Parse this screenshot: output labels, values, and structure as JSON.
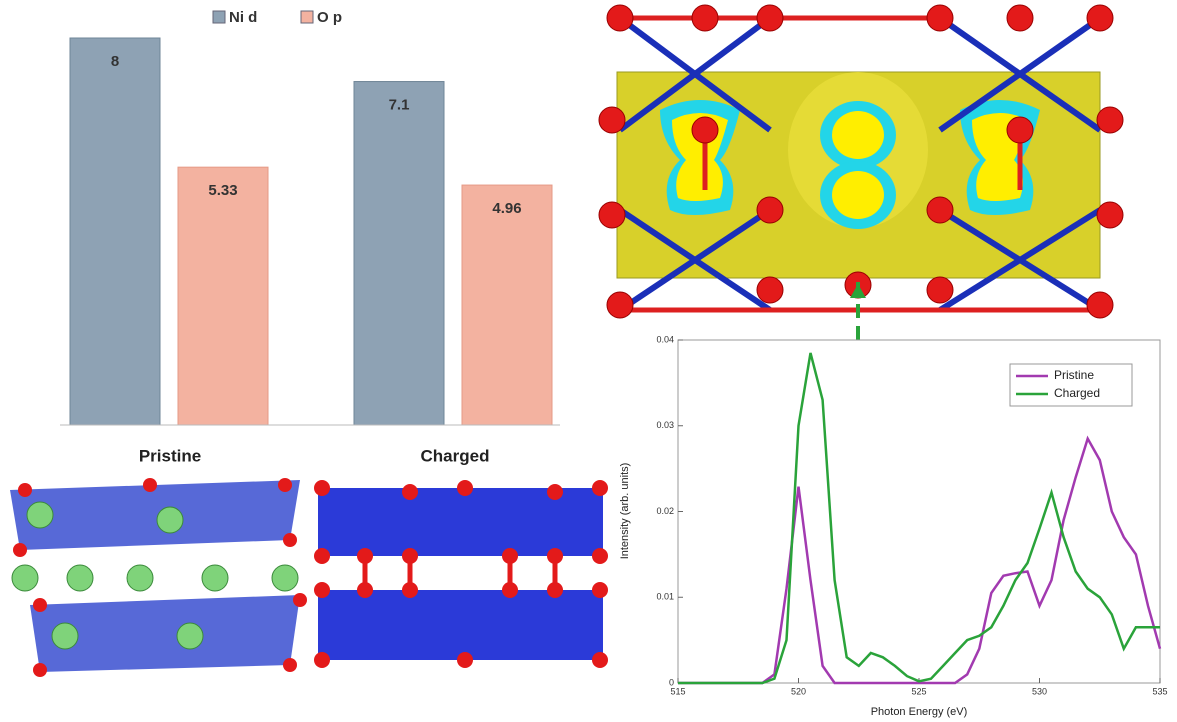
{
  "chart_data": [
    {
      "type": "bar",
      "categories": [
        null,
        null
      ],
      "series": [
        {
          "name": "Ni d",
          "color": "#8ea2b4",
          "values": [
            8,
            7.1
          ]
        },
        {
          "name": "O p",
          "color": "#f3b2a0",
          "values": [
            5.33,
            4.96
          ]
        }
      ]
    },
    {
      "type": "line",
      "xlabel": "Photon Energy (eV)",
      "ylabel": "Intensity (arb. units)",
      "x": [
        515,
        515.5,
        516,
        516.5,
        517,
        517.5,
        518,
        518.5,
        519,
        519.5,
        520,
        520.5,
        521,
        521.5,
        522,
        522.5,
        523,
        523.5,
        524,
        524.5,
        525,
        525.5,
        526,
        526.5,
        527,
        527.5,
        528,
        528.5,
        529,
        529.5,
        530,
        530.5,
        531,
        531.5,
        532,
        532.5,
        533,
        533.5,
        534,
        534.5,
        535
      ],
      "xlim": [
        515,
        535
      ],
      "xticks": [
        515,
        520,
        525,
        530,
        535
      ],
      "ylim": [
        0,
        0.04
      ],
      "yticks": [
        0,
        0.01,
        0.02,
        0.03,
        0.04
      ],
      "legend": "top-right",
      "series": [
        {
          "name": "Pristine",
          "color": "#a23ab0",
          "values": [
            0,
            0,
            0,
            0,
            0,
            0,
            0,
            0,
            0.001,
            0.011,
            0.0229,
            0.012,
            0.002,
            0,
            0,
            0,
            0,
            0,
            0,
            0,
            0,
            0,
            0,
            0,
            0.001,
            0.004,
            0.0105,
            0.0125,
            0.0128,
            0.013,
            0.009,
            0.012,
            0.019,
            0.024,
            0.0285,
            0.026,
            0.02,
            0.017,
            0.015,
            0.009,
            0.004
          ]
        },
        {
          "name": "Charged",
          "color": "#2aa33a",
          "values": [
            0,
            0,
            0,
            0,
            0,
            0,
            0,
            0,
            0.0005,
            0.005,
            0.03,
            0.0385,
            0.033,
            0.012,
            0.003,
            0.002,
            0.0035,
            0.003,
            0.002,
            0.0008,
            0.0002,
            0.0005,
            0.002,
            0.0035,
            0.005,
            0.0055,
            0.0065,
            0.009,
            0.012,
            0.014,
            0.018,
            0.0222,
            0.017,
            0.013,
            0.011,
            0.01,
            0.008,
            0.004,
            0.0065,
            0.0065,
            0.0065
          ]
        }
      ]
    }
  ],
  "structures": [
    "Pristine",
    "Charged"
  ]
}
